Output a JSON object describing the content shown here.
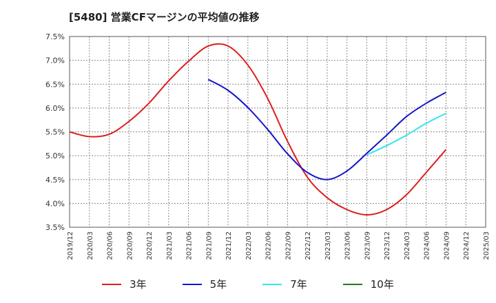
{
  "title": "[5480]  営業CFマージンの平均値の推移",
  "chart_data": {
    "type": "line",
    "title": "[5480]  営業CFマージンの平均値の推移",
    "xlabel": "",
    "ylabel": "",
    "ylim": [
      3.5,
      7.5
    ],
    "yticks": [
      "3.5%",
      "4.0%",
      "4.5%",
      "5.0%",
      "5.5%",
      "6.0%",
      "6.5%",
      "7.0%",
      "7.5%"
    ],
    "ytick_values": [
      3.5,
      4.0,
      4.5,
      5.0,
      5.5,
      6.0,
      6.5,
      7.0,
      7.5
    ],
    "categories": [
      "2019/12",
      "2020/03",
      "2020/06",
      "2020/09",
      "2020/12",
      "2021/03",
      "2021/06",
      "2021/09",
      "2021/12",
      "2022/03",
      "2022/06",
      "2022/09",
      "2022/12",
      "2023/03",
      "2023/06",
      "2023/09",
      "2023/12",
      "2024/03",
      "2024/06",
      "2024/09",
      "2024/12",
      "2025/03"
    ],
    "grid": true,
    "legend_position": "bottom",
    "series": [
      {
        "name": "3年",
        "color": "#dd1c1c",
        "values": [
          5.5,
          5.4,
          5.45,
          5.72,
          6.1,
          6.57,
          6.98,
          7.3,
          7.3,
          6.9,
          6.2,
          5.3,
          4.55,
          4.12,
          3.87,
          3.76,
          3.87,
          4.18,
          4.65,
          5.13,
          null,
          null
        ]
      },
      {
        "name": "5年",
        "color": "#1515c8",
        "values": [
          null,
          null,
          null,
          null,
          null,
          null,
          null,
          6.6,
          6.37,
          6.01,
          5.55,
          5.04,
          4.65,
          4.5,
          4.68,
          5.05,
          5.43,
          5.82,
          6.1,
          6.33,
          null,
          null
        ]
      },
      {
        "name": "7年",
        "color": "#33e6ee",
        "values": [
          null,
          null,
          null,
          null,
          null,
          null,
          null,
          null,
          null,
          null,
          null,
          null,
          null,
          null,
          null,
          5.02,
          5.21,
          5.43,
          5.68,
          5.89,
          null,
          null
        ]
      },
      {
        "name": "10年",
        "color": "#1a7f1a",
        "values": [
          null,
          null,
          null,
          null,
          null,
          null,
          null,
          null,
          null,
          null,
          null,
          null,
          null,
          null,
          null,
          null,
          null,
          null,
          null,
          null,
          null,
          null
        ]
      }
    ]
  }
}
